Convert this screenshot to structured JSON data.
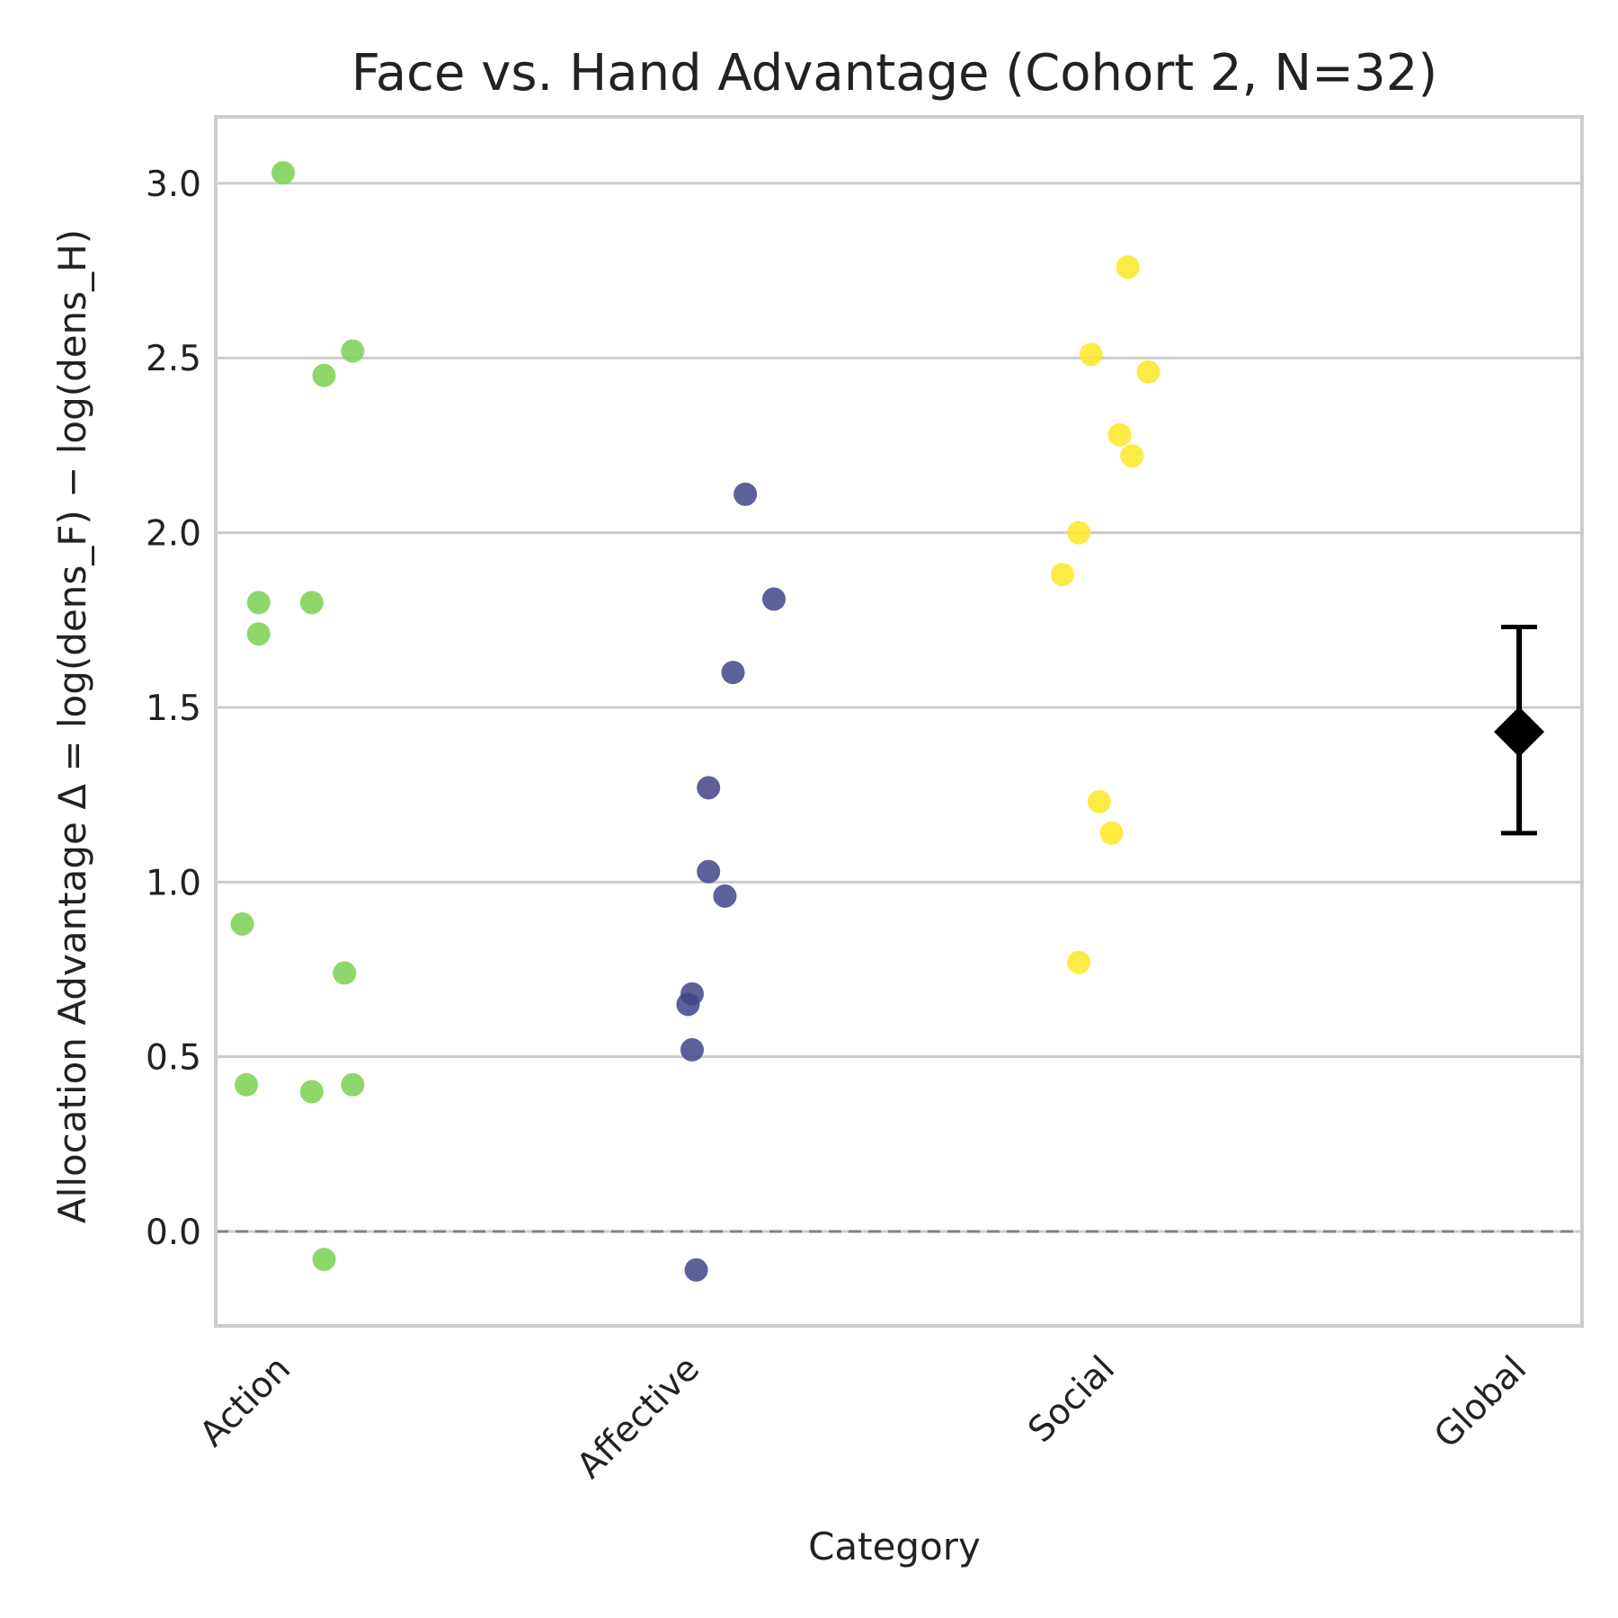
{
  "chart_data": {
    "type": "scatter",
    "title": "Face vs. Hand Advantage (Cohort 2, N=32)",
    "xlabel": "Category",
    "ylabel": "Allocation Advantage Δ = log(dens_F) − log(dens_H)",
    "categories": [
      "Action",
      "Affective",
      "Social",
      "Global"
    ],
    "ylim": [
      -0.27,
      3.19
    ],
    "yticks": [
      "0.0",
      "0.5",
      "1.0",
      "1.5",
      "2.0",
      "2.5",
      "3.0"
    ],
    "grid": "horizontal",
    "reference_line": {
      "y": 0.0,
      "style": "dashed",
      "color": "#808080"
    },
    "series": [
      {
        "category": "Action",
        "color": "#7ad151",
        "points": [
          {
            "jitter": 0.0,
            "y": 3.03
          },
          {
            "jitter": 0.17,
            "y": 2.52
          },
          {
            "jitter": 0.1,
            "y": 2.45
          },
          {
            "jitter": -0.06,
            "y": 1.8
          },
          {
            "jitter": 0.07,
            "y": 1.8
          },
          {
            "jitter": -0.06,
            "y": 1.71
          },
          {
            "jitter": -0.1,
            "y": 0.88
          },
          {
            "jitter": 0.15,
            "y": 0.74
          },
          {
            "jitter": -0.09,
            "y": 0.42
          },
          {
            "jitter": 0.17,
            "y": 0.42
          },
          {
            "jitter": 0.07,
            "y": 0.4
          },
          {
            "jitter": 0.1,
            "y": -0.08
          }
        ]
      },
      {
        "category": "Affective",
        "color": "#414487",
        "points": [
          {
            "jitter": 0.13,
            "y": 2.11
          },
          {
            "jitter": 0.2,
            "y": 1.81
          },
          {
            "jitter": 0.1,
            "y": 1.6
          },
          {
            "jitter": 0.04,
            "y": 1.27
          },
          {
            "jitter": 0.04,
            "y": 1.03
          },
          {
            "jitter": 0.08,
            "y": 0.96
          },
          {
            "jitter": 0.0,
            "y": 0.68
          },
          {
            "jitter": -0.01,
            "y": 0.65
          },
          {
            "jitter": 0.0,
            "y": 0.52
          },
          {
            "jitter": 0.01,
            "y": -0.11
          }
        ]
      },
      {
        "category": "Social",
        "color": "#fde725",
        "points": [
          {
            "jitter": 0.05,
            "y": 2.76
          },
          {
            "jitter": -0.04,
            "y": 2.51
          },
          {
            "jitter": 0.1,
            "y": 2.46
          },
          {
            "jitter": 0.03,
            "y": 2.28
          },
          {
            "jitter": 0.06,
            "y": 2.22
          },
          {
            "jitter": -0.07,
            "y": 2.0
          },
          {
            "jitter": -0.11,
            "y": 1.88
          },
          {
            "jitter": -0.02,
            "y": 1.23
          },
          {
            "jitter": 0.01,
            "y": 1.14
          },
          {
            "jitter": -0.07,
            "y": 0.77
          }
        ]
      }
    ],
    "global": {
      "mean": 1.43,
      "ci_low": 1.14,
      "ci_high": 1.73,
      "color": "#000000",
      "marker": "diamond"
    }
  }
}
